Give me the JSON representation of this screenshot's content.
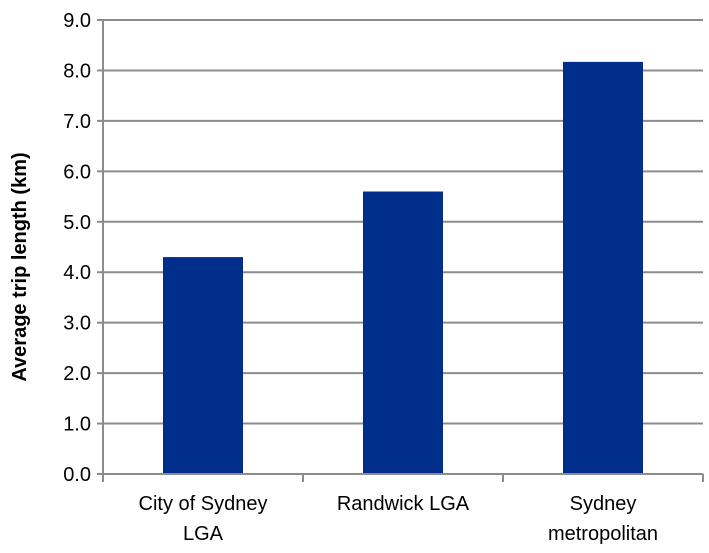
{
  "chart_data": {
    "type": "bar",
    "categories": [
      "City of Sydney LGA",
      "Randwick LGA",
      "Sydney metropolitan"
    ],
    "category_lines": [
      [
        "City of Sydney",
        "LGA"
      ],
      [
        "Randwick LGA"
      ],
      [
        "Sydney",
        "metropolitan"
      ]
    ],
    "values": [
      4.3,
      5.6,
      8.17
    ],
    "title": "",
    "xlabel": "",
    "ylabel": "Average trip length (km)",
    "ylim": [
      0,
      9
    ],
    "yticks": [
      "0.0",
      "1.0",
      "2.0",
      "3.0",
      "4.0",
      "5.0",
      "6.0",
      "7.0",
      "8.0",
      "9.0"
    ],
    "grid": true,
    "legend": "none",
    "colors": {
      "bar": "#002E8A",
      "grid": "#8C8C8C",
      "axis": "#8C8C8C"
    }
  }
}
